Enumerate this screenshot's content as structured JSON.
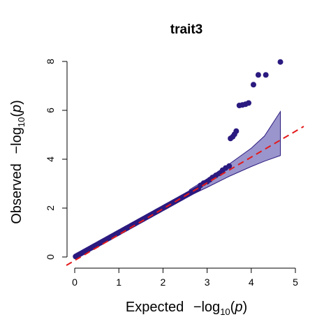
{
  "chart_data": {
    "type": "scatter",
    "title": "trait3",
    "xlabel": {
      "prefix": "Expected",
      "op": "−log",
      "sub": "10",
      "open": "(",
      "var": "p",
      "close": ")"
    },
    "ylabel": {
      "prefix": "Observed",
      "op": "−log",
      "sub": "10",
      "open": "(",
      "var": "p",
      "close": ")"
    },
    "xlim": [
      0,
      5
    ],
    "ylim": [
      0,
      8
    ],
    "x_ticks": [
      0,
      1,
      2,
      3,
      4,
      5
    ],
    "y_ticks": [
      0,
      2,
      4,
      6,
      8
    ],
    "grid": false,
    "colors": {
      "points": "#2b1a7f",
      "reference_line": "#e31a1c",
      "confidence_fill": "#9a95cc",
      "confidence_edge": "#2b1a7f"
    },
    "reference_line": {
      "from": [
        0,
        0
      ],
      "to": [
        5,
        5
      ]
    },
    "confidence_band": {
      "upper": [
        [
          2.6,
          2.75
        ],
        [
          3.0,
          3.2
        ],
        [
          3.5,
          3.8
        ],
        [
          4.0,
          4.45
        ],
        [
          4.3,
          4.95
        ],
        [
          4.66,
          5.95
        ]
      ],
      "lower": [
        [
          2.6,
          2.5
        ],
        [
          3.0,
          2.85
        ],
        [
          3.5,
          3.3
        ],
        [
          4.0,
          3.7
        ],
        [
          4.3,
          3.92
        ],
        [
          4.66,
          4.15
        ]
      ]
    },
    "diagonal_points": {
      "from": 0.02,
      "to": 2.8,
      "count": 110
    },
    "tail_points": [
      [
        2.85,
        2.93
      ],
      [
        2.92,
        3.02
      ],
      [
        3.0,
        3.08
      ],
      [
        3.06,
        3.16
      ],
      [
        3.12,
        3.25
      ],
      [
        3.2,
        3.34
      ],
      [
        3.28,
        3.42
      ],
      [
        3.35,
        3.55
      ],
      [
        3.42,
        3.64
      ],
      [
        3.5,
        3.72
      ],
      [
        3.53,
        4.85
      ],
      [
        3.58,
        4.92
      ],
      [
        3.62,
        5.02
      ],
      [
        3.66,
        5.15
      ],
      [
        3.73,
        6.2
      ],
      [
        3.8,
        6.22
      ],
      [
        3.87,
        6.25
      ],
      [
        3.94,
        6.3
      ],
      [
        4.05,
        7.05
      ],
      [
        4.16,
        7.45
      ],
      [
        4.33,
        7.45
      ],
      [
        4.66,
        7.98
      ]
    ]
  }
}
